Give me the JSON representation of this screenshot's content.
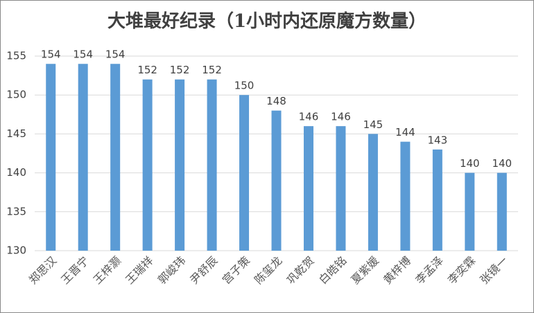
{
  "chart_data": {
    "type": "bar",
    "title": "大堆最好纪录（1小时内还原魔方数量）",
    "categories": [
      "郑思汉",
      "王晋宁",
      "王梓灏",
      "王瑞祥",
      "郭峻玮",
      "尹舒辰",
      "宫子策",
      "陈玺龙",
      "巩乾贺",
      "白皓铭",
      "夏紫媛",
      "黄梓博",
      "李孟泽",
      "李奕霖",
      "张镜一"
    ],
    "values": [
      154,
      154,
      154,
      152,
      152,
      152,
      150,
      148,
      146,
      146,
      145,
      144,
      143,
      140,
      140
    ],
    "color": "#5b9bd5",
    "ylim": [
      130,
      155
    ],
    "yticks": [
      130,
      135,
      140,
      145,
      150,
      155
    ],
    "grid": true
  }
}
